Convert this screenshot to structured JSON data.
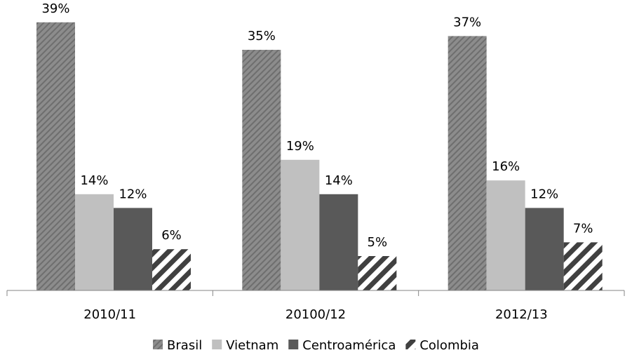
{
  "chart_data": {
    "type": "bar",
    "categories": [
      "2010/11",
      "20100/12",
      "2012/13"
    ],
    "series": [
      {
        "name": "Brasil",
        "values": [
          39,
          35,
          37
        ],
        "labels": [
          "39%",
          "35%",
          "37%"
        ],
        "color": "#7f7f7f",
        "pattern": "dense-diagonal"
      },
      {
        "name": "Vietnam",
        "values": [
          14,
          19,
          16
        ],
        "labels": [
          "14%",
          "19%",
          "16%"
        ],
        "color": "#c0c0c0",
        "pattern": "solid"
      },
      {
        "name": "Centroamérica",
        "values": [
          12,
          14,
          12
        ],
        "labels": [
          "12%",
          "14%",
          "12%"
        ],
        "color": "#595959",
        "pattern": "solid"
      },
      {
        "name": "Colombia",
        "values": [
          6,
          5,
          7
        ],
        "labels": [
          "6%",
          "5%",
          "7%"
        ],
        "color": "#404040",
        "pattern": "wide-diagonal-stripes"
      }
    ],
    "ylim": [
      0,
      40
    ],
    "legend_position": "bottom",
    "grid": false,
    "y_axis_visible": false
  }
}
